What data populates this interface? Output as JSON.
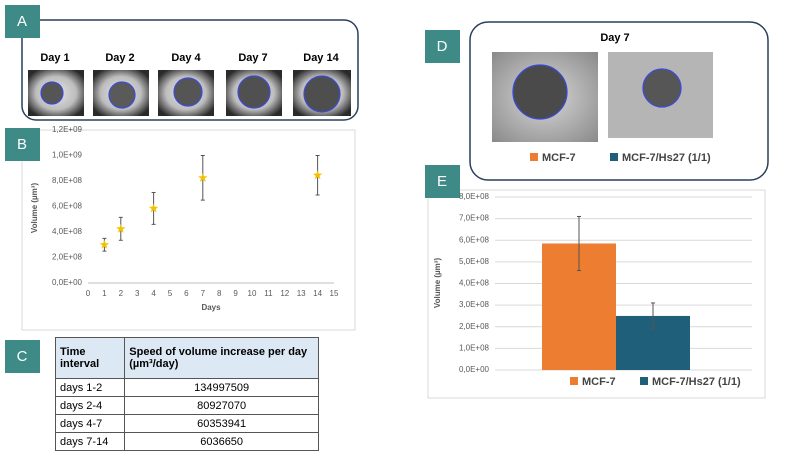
{
  "panel_labels": [
    "A",
    "B",
    "C",
    "D",
    "E"
  ],
  "panel_a": {
    "days": [
      "Day 1",
      "Day 2",
      "Day 4",
      "Day 7",
      "Day 14"
    ]
  },
  "panel_d": {
    "title": "Day 7"
  },
  "chart_data": [
    {
      "type": "scatter",
      "xlabel": "Days",
      "ylabel": "Volume (µm³)",
      "x": [
        1,
        2,
        4,
        7,
        14
      ],
      "values": [
        300000000,
        425000000,
        585000000,
        825000000,
        845000000
      ],
      "errors": [
        50000000,
        90000000,
        125000000,
        175000000,
        155000000
      ],
      "color": "#f2c200",
      "xlim": [
        0,
        15
      ],
      "xticks": [
        0,
        1,
        2,
        3,
        4,
        5,
        6,
        7,
        8,
        9,
        10,
        11,
        12,
        13,
        14,
        15
      ],
      "ylim": [
        0,
        1200000000
      ],
      "yticks": [
        {
          "value": 0,
          "label": "0,0E+00"
        },
        {
          "value": 200000000,
          "label": "2,0E+08"
        },
        {
          "value": 400000000,
          "label": "4,0E+08"
        },
        {
          "value": 600000000,
          "label": "6,0E+08"
        },
        {
          "value": 800000000,
          "label": "8,0E+08"
        },
        {
          "value": 1000000000,
          "label": "1,0E+09"
        },
        {
          "value": 1200000000,
          "label": "1,2E+09"
        }
      ],
      "grid": false
    },
    {
      "type": "bar",
      "ylabel": "Volume (µm³)",
      "series": [
        {
          "name": "MCF-7",
          "color": "#ed7d31",
          "values": [
            585000000
          ],
          "errors": [
            125000000
          ]
        },
        {
          "name": "MCF-7/Hs27 (1/1)",
          "color": "#1f5f7a",
          "values": [
            250000000
          ],
          "errors": [
            60000000
          ]
        }
      ],
      "ylim": [
        0,
        800000000
      ],
      "yticks": [
        {
          "value": 0,
          "label": "0,0E+00"
        },
        {
          "value": 100000000,
          "label": "1,0E+08"
        },
        {
          "value": 200000000,
          "label": "2,0E+08"
        },
        {
          "value": 300000000,
          "label": "3,0E+08"
        },
        {
          "value": 400000000,
          "label": "4,0E+08"
        },
        {
          "value": 500000000,
          "label": "5,0E+08"
        },
        {
          "value": 600000000,
          "label": "6,0E+08"
        },
        {
          "value": 700000000,
          "label": "7,0E+08"
        },
        {
          "value": 800000000,
          "label": "8,0E+08"
        }
      ],
      "grid": true,
      "legend": "bottom"
    }
  ],
  "table": {
    "header": [
      "Time interval",
      "Speed of volume increase per day (µm³/day)"
    ],
    "rows": [
      [
        "days 1-2",
        134997509
      ],
      [
        "days 2-4",
        80927070
      ],
      [
        "days 4-7",
        60353941
      ],
      [
        "days 7-14",
        6036650
      ]
    ]
  }
}
